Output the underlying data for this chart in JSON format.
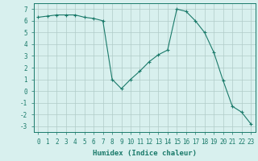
{
  "x": [
    0,
    1,
    2,
    3,
    4,
    5,
    6,
    7,
    8,
    9,
    10,
    11,
    12,
    13,
    14,
    15,
    16,
    17,
    18,
    19,
    20,
    21,
    22,
    23
  ],
  "y": [
    6.3,
    6.4,
    6.5,
    6.5,
    6.5,
    6.3,
    6.2,
    6.0,
    1.0,
    0.2,
    1.0,
    1.7,
    2.5,
    3.1,
    3.5,
    7.0,
    6.8,
    6.0,
    5.0,
    3.3,
    0.9,
    -1.3,
    -1.8,
    -2.8
  ],
  "line_color": "#1a7a6a",
  "marker": "+",
  "marker_size": 3,
  "bg_color": "#d8f0ee",
  "grid_color": "#b0ccc8",
  "xlabel": "Humidex (Indice chaleur)",
  "xlim": [
    -0.5,
    23.5
  ],
  "ylim": [
    -3.5,
    7.5
  ],
  "yticks": [
    -3,
    -2,
    -1,
    0,
    1,
    2,
    3,
    4,
    5,
    6,
    7
  ],
  "xticks": [
    0,
    1,
    2,
    3,
    4,
    5,
    6,
    7,
    8,
    9,
    10,
    11,
    12,
    13,
    14,
    15,
    16,
    17,
    18,
    19,
    20,
    21,
    22,
    23
  ],
  "tick_fontsize": 5.5,
  "xlabel_fontsize": 6.5,
  "line_width": 0.8
}
